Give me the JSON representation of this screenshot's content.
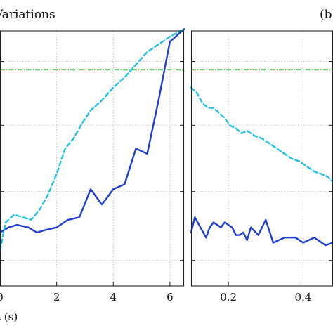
{
  "chart_data": [
    {
      "type": "line",
      "title": "Variations",
      "xlabel": "t (s)",
      "xlim": [
        0,
        6.5
      ],
      "ylim": [
        0,
        1
      ],
      "x_ticks": [
        0,
        2,
        4,
        6
      ],
      "x_tick_labels": [
        "0",
        "2",
        "4",
        "6"
      ],
      "grid": true,
      "reference_line": {
        "y": 0.85,
        "color": "#1a9e1a"
      },
      "series": [
        {
          "color": "#1f3fd1",
          "style": "solid",
          "x": [
            0,
            0.3,
            0.6,
            1.0,
            1.3,
            1.6,
            2.0,
            2.4,
            2.8,
            3.2,
            3.6,
            4.0,
            4.4,
            4.8,
            5.2,
            5.6,
            6.0,
            6.5
          ],
          "y": [
            0.21,
            0.23,
            0.24,
            0.23,
            0.21,
            0.22,
            0.23,
            0.26,
            0.27,
            0.38,
            0.32,
            0.38,
            0.4,
            0.54,
            0.52,
            0.73,
            0.96,
            1.01
          ]
        },
        {
          "color": "#22bfe8",
          "style": "dashed",
          "x": [
            0,
            0.2,
            0.5,
            0.8,
            1.1,
            1.4,
            1.7,
            2.0,
            2.3,
            2.6,
            2.9,
            3.2,
            3.6,
            4.0,
            4.4,
            4.8,
            5.2,
            5.6,
            6.0,
            6.5
          ],
          "y": [
            0.14,
            0.25,
            0.28,
            0.27,
            0.26,
            0.3,
            0.36,
            0.44,
            0.54,
            0.58,
            0.64,
            0.69,
            0.73,
            0.78,
            0.82,
            0.87,
            0.92,
            0.95,
            0.98,
            1.01
          ]
        }
      ]
    },
    {
      "type": "line",
      "panel_label": "(b)",
      "xlim": [
        0.1,
        0.48
      ],
      "ylim": [
        0,
        1
      ],
      "x_ticks": [
        0.2,
        0.4
      ],
      "x_tick_labels": [
        "0.2",
        "0.4"
      ],
      "grid": true,
      "reference_line": {
        "y": 0.85,
        "color": "#1a9e1a"
      },
      "series": [
        {
          "color": "#1f3fd1",
          "style": "solid",
          "x": [
            0.1,
            0.11,
            0.125,
            0.14,
            0.15,
            0.16,
            0.17,
            0.18,
            0.19,
            0.2,
            0.21,
            0.22,
            0.23,
            0.24,
            0.25,
            0.26,
            0.28,
            0.3,
            0.32,
            0.35,
            0.38,
            0.4,
            0.43,
            0.46,
            0.48
          ],
          "y": [
            0.21,
            0.27,
            0.23,
            0.19,
            0.23,
            0.25,
            0.24,
            0.23,
            0.25,
            0.24,
            0.23,
            0.2,
            0.2,
            0.21,
            0.18,
            0.23,
            0.2,
            0.26,
            0.17,
            0.19,
            0.19,
            0.17,
            0.19,
            0.16,
            0.17
          ]
        },
        {
          "color": "#22bfe8",
          "style": "dashed",
          "x": [
            0.1,
            0.115,
            0.13,
            0.145,
            0.16,
            0.175,
            0.19,
            0.205,
            0.22,
            0.235,
            0.25,
            0.27,
            0.29,
            0.31,
            0.33,
            0.35,
            0.37,
            0.39,
            0.41,
            0.43,
            0.45,
            0.465,
            0.48
          ],
          "y": [
            0.78,
            0.76,
            0.72,
            0.7,
            0.7,
            0.68,
            0.66,
            0.63,
            0.62,
            0.6,
            0.61,
            0.59,
            0.58,
            0.56,
            0.54,
            0.52,
            0.5,
            0.49,
            0.47,
            0.45,
            0.44,
            0.43,
            0.41
          ]
        }
      ]
    }
  ]
}
